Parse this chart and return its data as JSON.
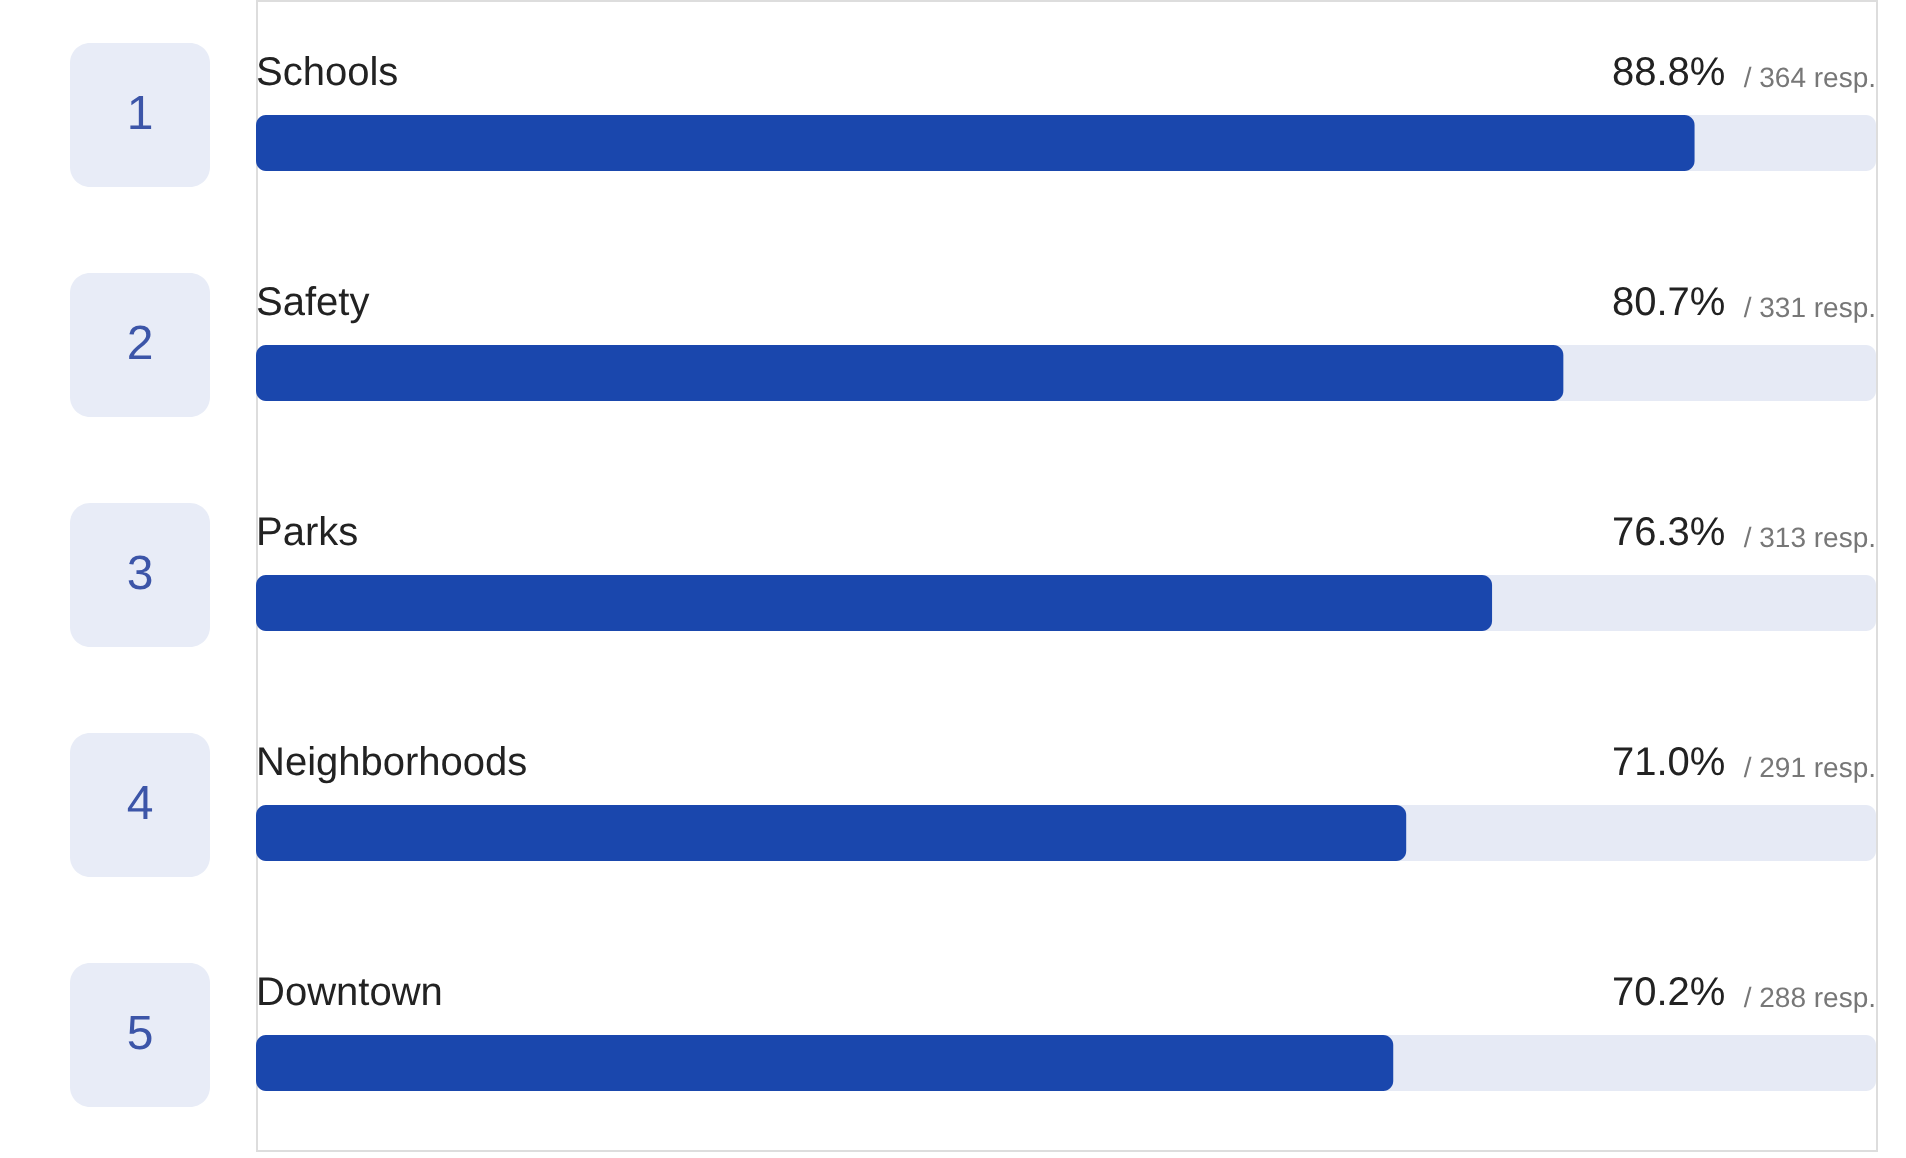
{
  "chart_data": {
    "type": "bar",
    "orientation": "horizontal",
    "categories": [
      "Schools",
      "Safety",
      "Parks",
      "Neighborhoods",
      "Downtown"
    ],
    "values": [
      88.8,
      80.7,
      76.3,
      71.0,
      70.2
    ],
    "value_labels": [
      "88.8%",
      "80.7%",
      "76.3%",
      "71.0%",
      "70.2%"
    ],
    "color": "#1a47ad",
    "xlim": [
      0,
      100
    ],
    "tick_labels": false,
    "annotations": [
      "1",
      "2",
      "3",
      "4",
      "5",
      "/ 364 resp.",
      "/ 331 resp.",
      "/ 313 resp.",
      "/ 291 resp.",
      "/ 288 resp."
    ]
  }
}
